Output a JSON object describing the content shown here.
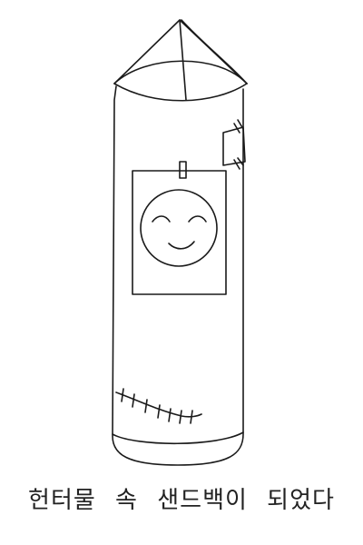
{
  "caption": "헌터물 속 샌드백이 되었다"
}
